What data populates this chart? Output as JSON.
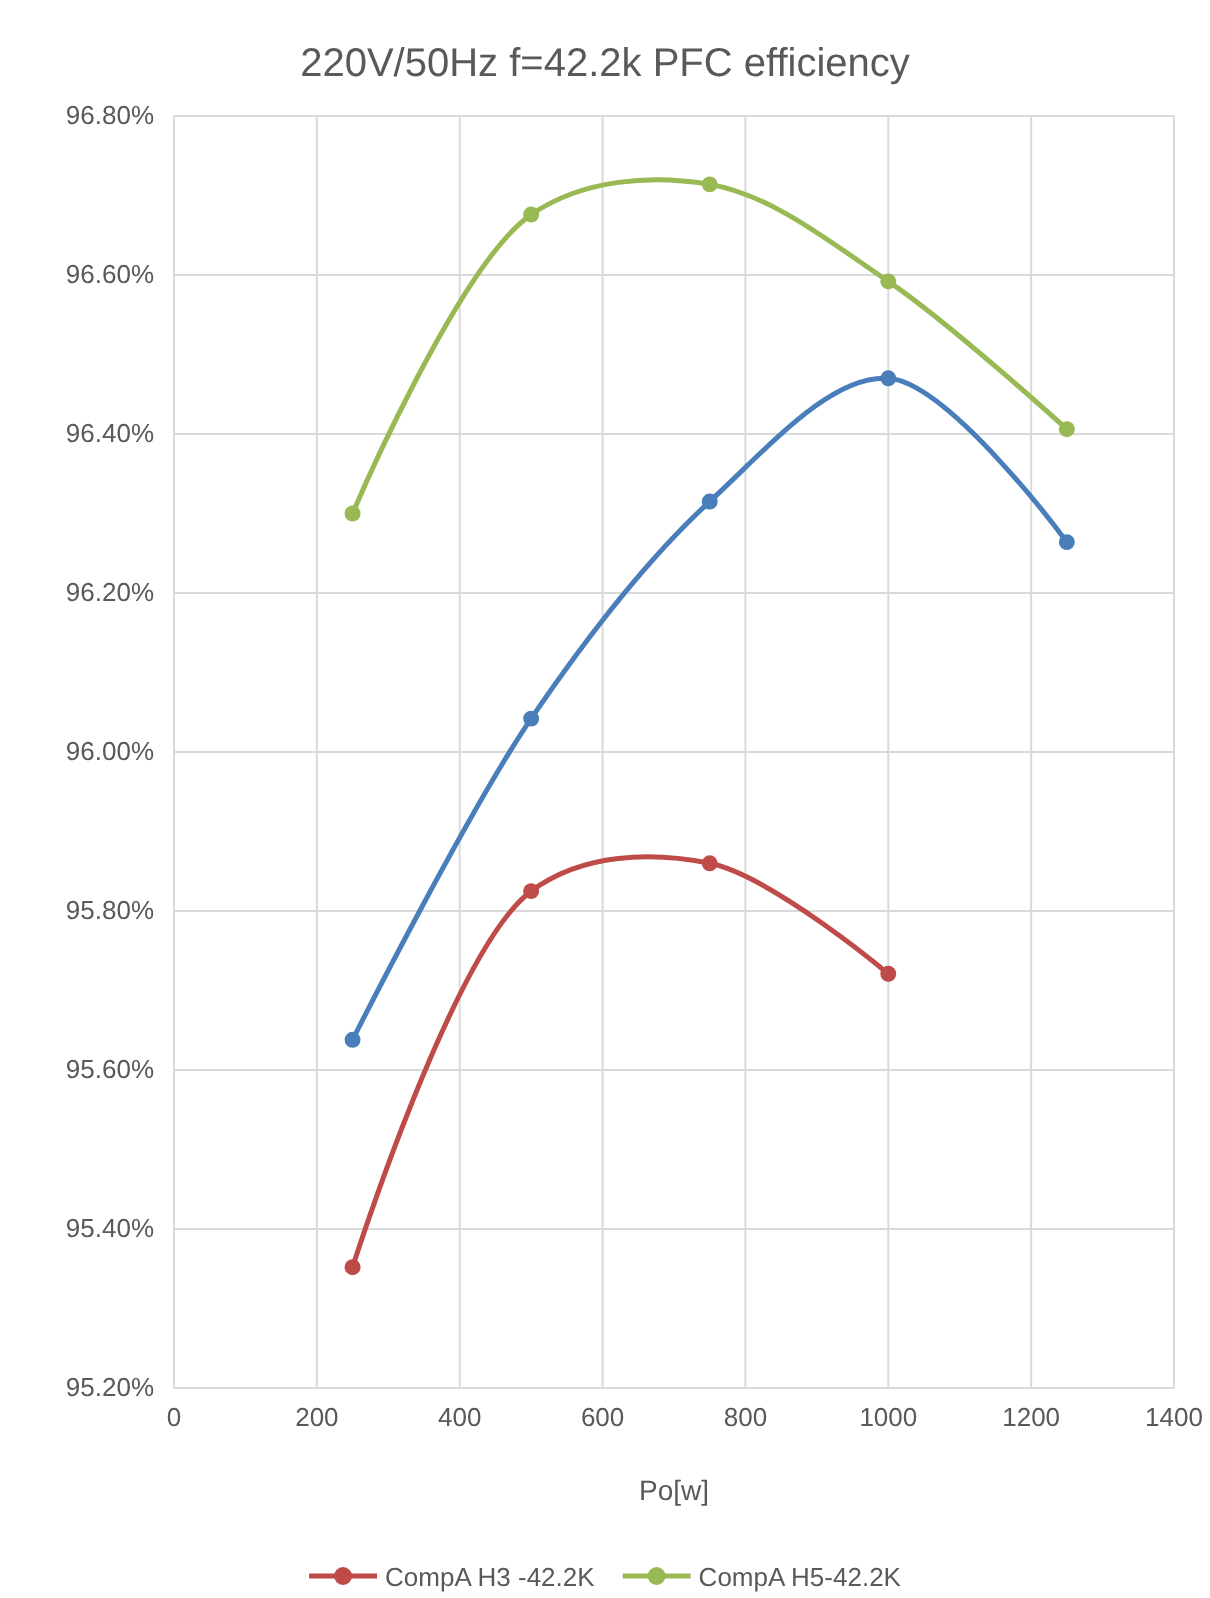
{
  "chart_data": {
    "type": "line",
    "title": "220V/50Hz f=42.2k PFC efficiency",
    "xlabel": "Po[w]",
    "x": [
      250,
      500,
      750,
      1000,
      1250
    ],
    "series": [
      {
        "color": "#4a7ebb",
        "values": [
          95.638,
          96.042,
          96.315,
          96.47,
          96.264
        ]
      },
      {
        "name": "CompA H3 -42.2K",
        "color": "#be4b48",
        "values": [
          95.352,
          95.825,
          95.86,
          95.721,
          null
        ]
      },
      {
        "name": "CompA H5-42.2K",
        "color": "#98b954",
        "values": [
          96.3,
          96.676,
          96.714,
          96.592,
          96.406
        ]
      }
    ],
    "xlim": [
      0,
      1400
    ],
    "xticks": [
      0,
      200,
      400,
      600,
      800,
      1000,
      1200,
      1400
    ],
    "ylim": [
      95.2,
      96.8
    ],
    "yticks": [
      {
        "value": 95.2,
        "label": "95.20%"
      },
      {
        "value": 95.4,
        "label": "95.40%"
      },
      {
        "value": 95.6,
        "label": "95.60%"
      },
      {
        "value": 95.8,
        "label": "95.80%"
      },
      {
        "value": 96.0,
        "label": "96.00%"
      },
      {
        "value": 96.2,
        "label": "96.20%"
      },
      {
        "value": 96.4,
        "label": "96.40%"
      },
      {
        "value": 96.6,
        "label": "96.60%"
      },
      {
        "value": 96.8,
        "label": "96.80%"
      }
    ],
    "grid": true,
    "legend": "bottom",
    "marker": "circle",
    "line_style": "solid"
  }
}
